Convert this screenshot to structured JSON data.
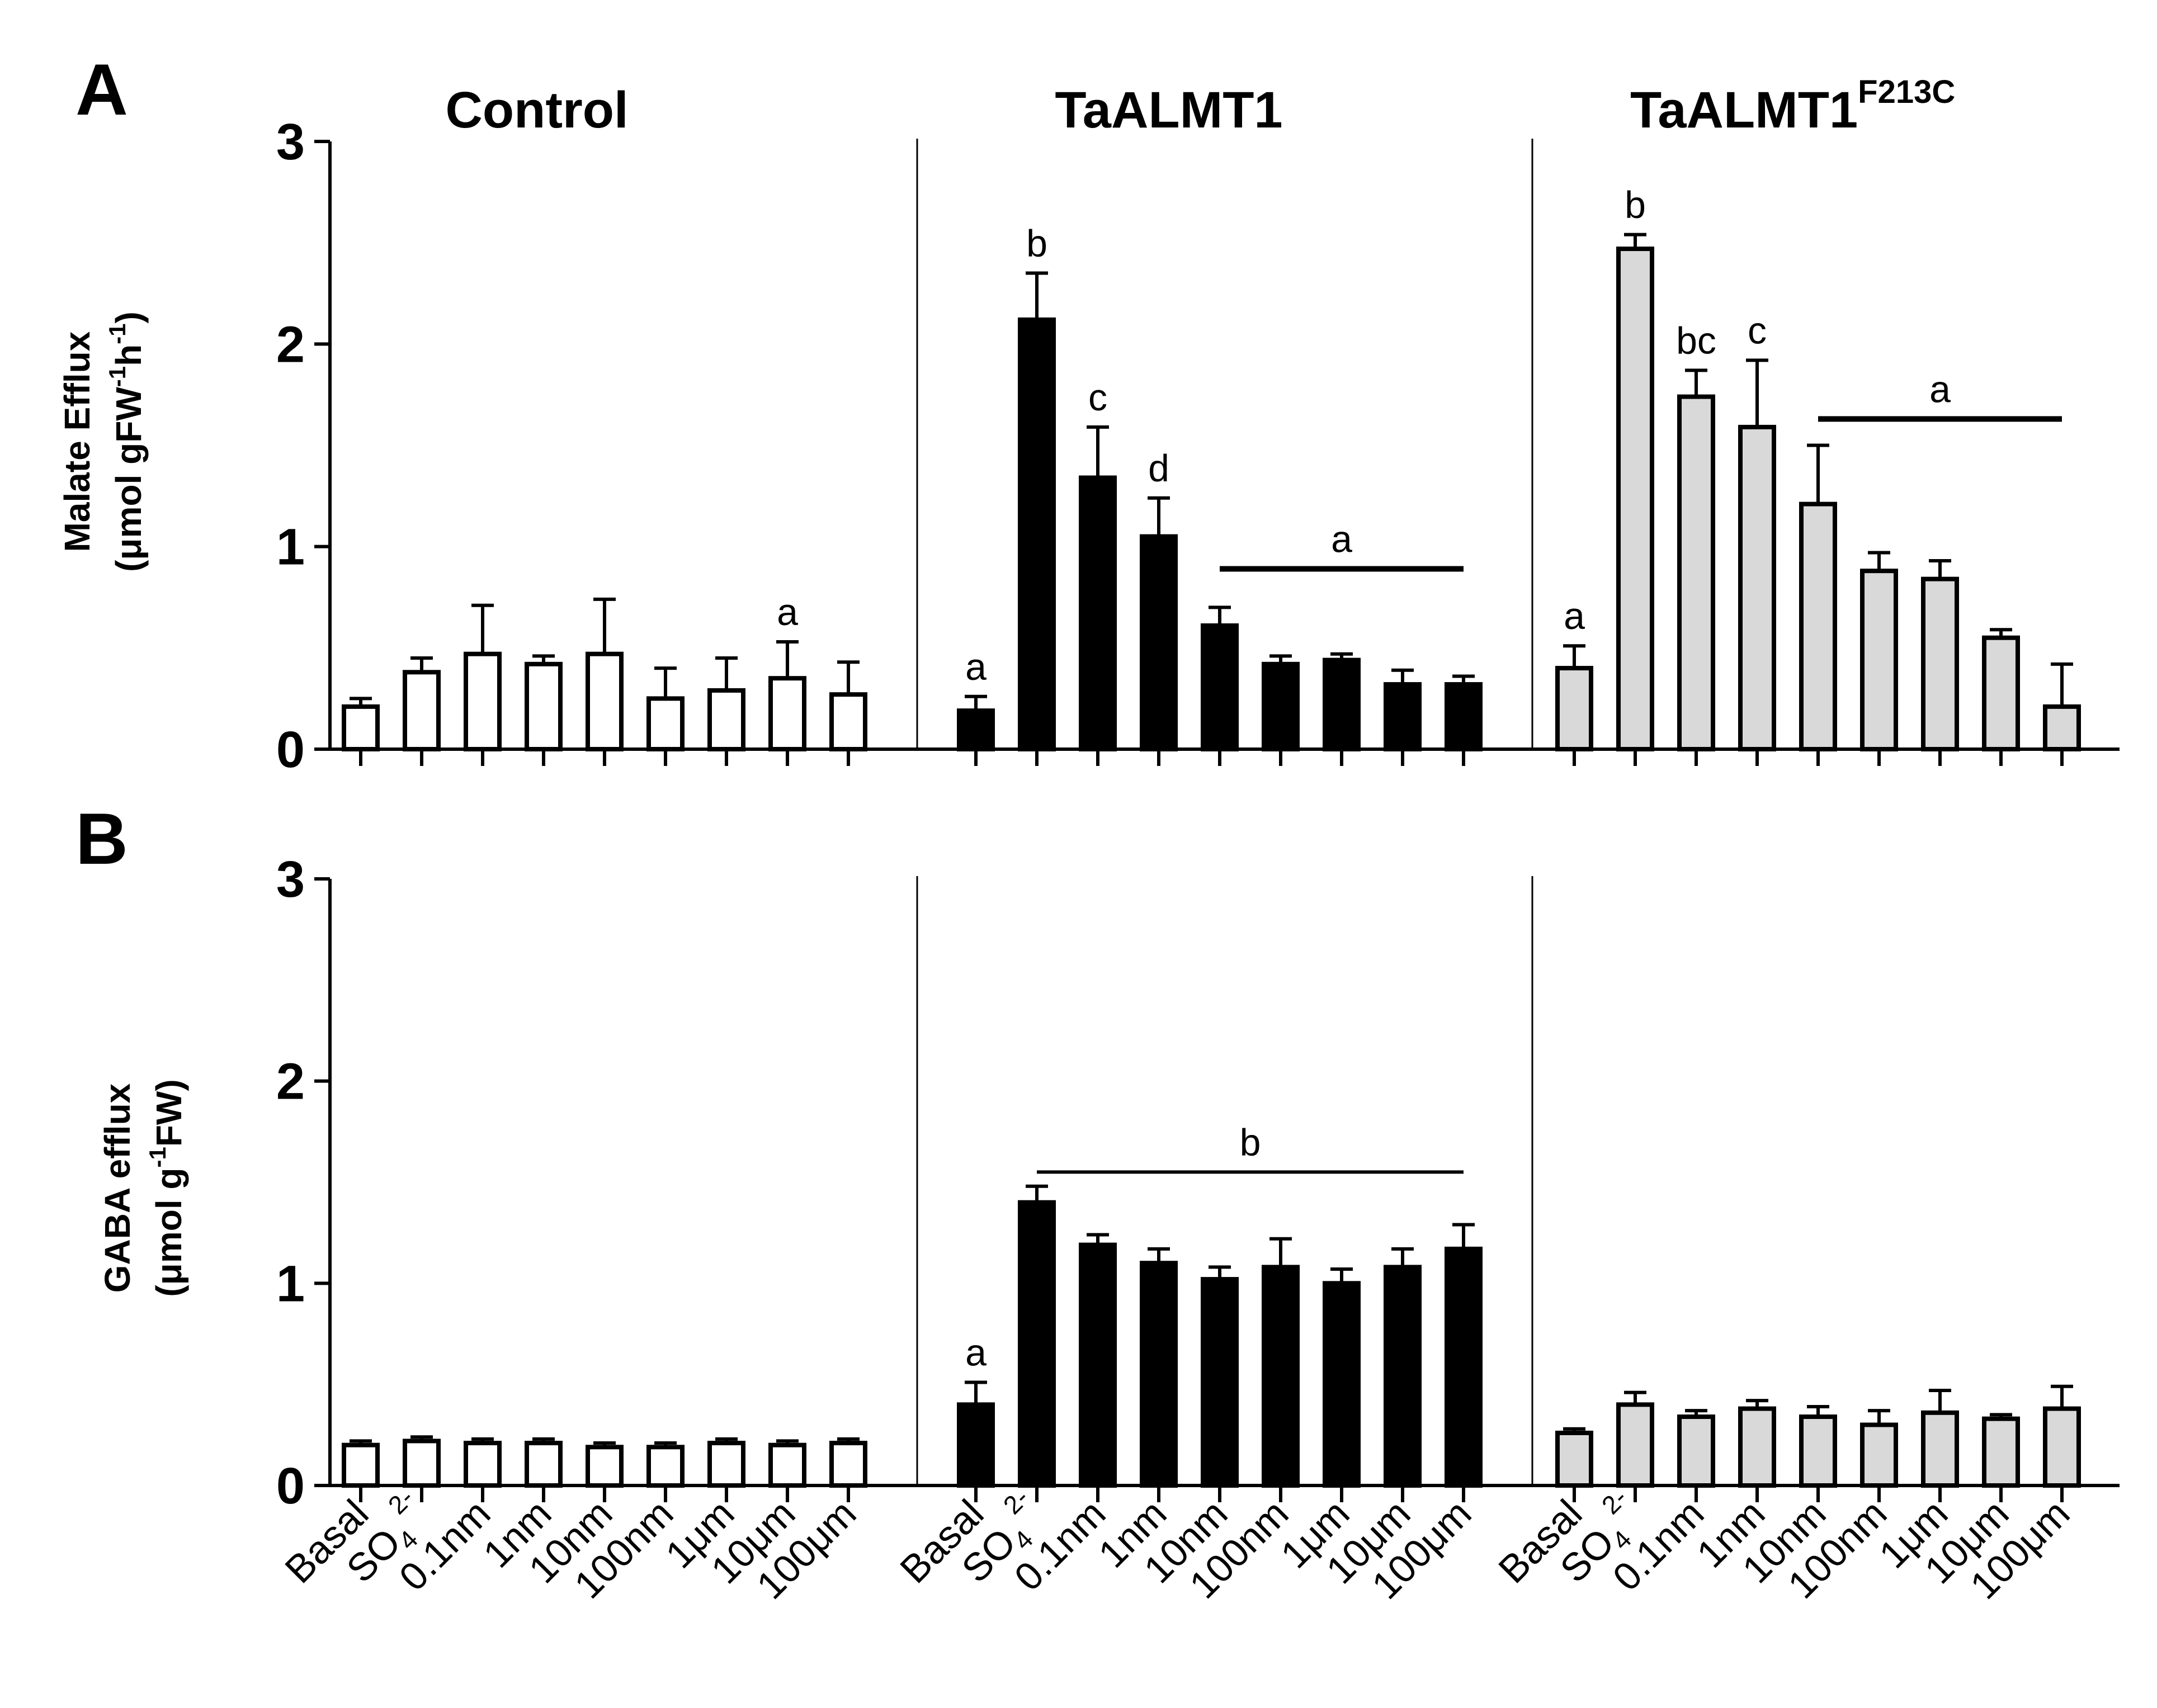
{
  "panels": [
    {
      "letter": "A",
      "ylabel_line1": "Malate Efflux",
      "ylabel_line2_prefix": "(μmol gFW",
      "ylabel_sup1": "-1",
      "ylabel_mid": "h",
      "ylabel_sup2": "-1",
      "ylabel_suffix": ")"
    },
    {
      "letter": "B",
      "ylabel_line1": "GABA efflux",
      "ylabel_line2_prefix": "(μmol g",
      "ylabel_sup1": "-1",
      "ylabel_mid": "FW)",
      "ylabel_sup2": "",
      "ylabel_suffix": ""
    }
  ],
  "groups": [
    {
      "title": "Control",
      "title_sup": ""
    },
    {
      "title": "TaALMT1",
      "title_sup": ""
    },
    {
      "title": "TaALMT1",
      "title_sup": "F213C"
    }
  ],
  "colors": {
    "Control": "#ffffff",
    "TaALMT1": "#000000",
    "TaALMT1F213C": "#d9d9d9",
    "stroke": "#000000"
  },
  "chart_data": [
    {
      "type": "bar",
      "panel": "A",
      "title": "",
      "ylabel": "Malate Efflux (μmol gFW-1h-1)",
      "ylim": [
        0,
        3
      ],
      "yticks": [
        "0",
        "1",
        "2",
        "3"
      ],
      "categories": [
        "Basal",
        "SO4 2-",
        "0.1nm",
        "1nm",
        "10nm",
        "100nm",
        "1μm",
        "10μm",
        "100μm"
      ],
      "series": [
        {
          "name": "Control",
          "values": [
            0.21,
            0.38,
            0.47,
            0.42,
            0.47,
            0.25,
            0.29,
            0.35,
            0.27
          ],
          "errors": [
            0.04,
            0.07,
            0.24,
            0.04,
            0.27,
            0.15,
            0.16,
            0.18,
            0.16
          ],
          "letters": [
            "",
            "",
            "",
            "",
            "",
            "",
            "",
            "a",
            ""
          ]
        },
        {
          "name": "TaALMT1",
          "values": [
            0.19,
            2.12,
            1.34,
            1.05,
            0.61,
            0.42,
            0.44,
            0.32,
            0.32
          ],
          "errors": [
            0.07,
            0.23,
            0.25,
            0.19,
            0.09,
            0.04,
            0.03,
            0.07,
            0.04
          ],
          "letters": [
            "a",
            "b",
            "c",
            "d",
            "",
            "",
            "",
            "",
            ""
          ]
        },
        {
          "name": "TaALMT1F213C",
          "values": [
            0.4,
            2.47,
            1.74,
            1.59,
            1.21,
            0.88,
            0.84,
            0.55,
            0.21
          ],
          "errors": [
            0.11,
            0.07,
            0.13,
            0.33,
            0.29,
            0.09,
            0.09,
            0.04,
            0.21
          ],
          "letters": [
            "a",
            "b",
            "bc",
            "c",
            "",
            "",
            "",
            "",
            ""
          ]
        }
      ],
      "group_brackets": [
        {
          "series": "TaALMT1",
          "from": "10nm",
          "to": "100μm",
          "label": "a",
          "at": 0.89
        },
        {
          "series": "TaALMT1F213C",
          "from": "10nm",
          "to": "100μm",
          "label": "a",
          "at": 1.63
        }
      ]
    },
    {
      "type": "bar",
      "panel": "B",
      "title": "",
      "ylabel": "GABA efflux (μmol g-1FW)",
      "ylim": [
        0,
        3
      ],
      "yticks": [
        "0",
        "1",
        "2",
        "3"
      ],
      "categories": [
        "Basal",
        "SO4 2-",
        "0.1nm",
        "1nm",
        "10nm",
        "100nm",
        "1μm",
        "10μm",
        "100μm"
      ],
      "series": [
        {
          "name": "Control",
          "values": [
            0.2,
            0.22,
            0.21,
            0.21,
            0.19,
            0.19,
            0.21,
            0.2,
            0.21
          ],
          "errors": [
            0.02,
            0.02,
            0.02,
            0.02,
            0.02,
            0.02,
            0.02,
            0.02,
            0.02
          ],
          "letters": [
            "",
            "",
            "",
            "",
            "",
            "",
            "",
            "",
            ""
          ]
        },
        {
          "name": "TaALMT1",
          "values": [
            0.4,
            1.4,
            1.19,
            1.1,
            1.02,
            1.08,
            1.0,
            1.08,
            1.17
          ],
          "errors": [
            0.11,
            0.08,
            0.05,
            0.07,
            0.06,
            0.14,
            0.07,
            0.09,
            0.12
          ],
          "letters": [
            "a",
            "",
            "",
            "",
            "",
            "",
            "",
            "",
            ""
          ]
        },
        {
          "name": "TaALMT1F213C",
          "values": [
            0.26,
            0.4,
            0.34,
            0.38,
            0.34,
            0.3,
            0.36,
            0.33,
            0.38
          ],
          "errors": [
            0.02,
            0.06,
            0.03,
            0.04,
            0.05,
            0.07,
            0.11,
            0.02,
            0.11
          ],
          "letters": [
            "",
            "",
            "",
            "",
            "",
            "",
            "",
            "",
            ""
          ]
        }
      ],
      "group_brackets": [
        {
          "series": "TaALMT1",
          "from": "SO4 2-",
          "to": "100μm",
          "label": "b",
          "at": 1.55
        }
      ]
    }
  ],
  "x_tick_labels": [
    {
      "main": "Basal",
      "sub": "",
      "sup": ""
    },
    {
      "main": "SO",
      "sub": "4",
      "sup": "2-"
    },
    {
      "main": "0.1nm",
      "sub": "",
      "sup": ""
    },
    {
      "main": "1nm",
      "sub": "",
      "sup": ""
    },
    {
      "main": "10nm",
      "sub": "",
      "sup": ""
    },
    {
      "main": "100nm",
      "sub": "",
      "sup": ""
    },
    {
      "main": "1μm",
      "sub": "",
      "sup": ""
    },
    {
      "main": "10μm",
      "sub": "",
      "sup": ""
    },
    {
      "main": "100μm",
      "sub": "",
      "sup": ""
    }
  ]
}
